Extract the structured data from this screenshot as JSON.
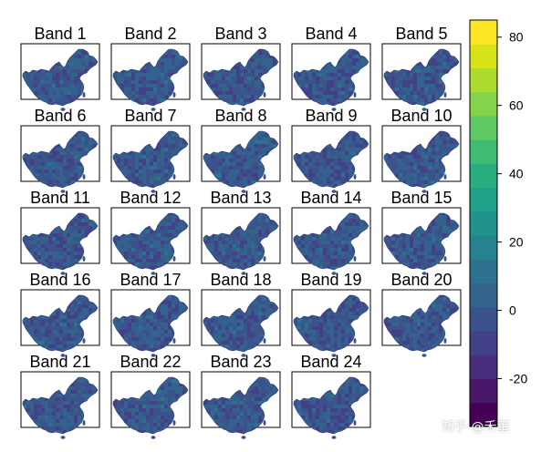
{
  "chart_data": {
    "type": "heatmap",
    "title": "",
    "panels": [
      "Band 1",
      "Band 2",
      "Band 3",
      "Band 4",
      "Band 5",
      "Band 6",
      "Band 7",
      "Band 8",
      "Band 9",
      "Band 10",
      "Band 11",
      "Band 12",
      "Band 13",
      "Band 14",
      "Band 15",
      "Band 16",
      "Band 17",
      "Band 18",
      "Band 19",
      "Band 20",
      "Band 21",
      "Band 22",
      "Band 23",
      "Band 24"
    ],
    "grid": {
      "rows": 5,
      "cols": 5
    },
    "colorbar": {
      "colormap": "viridis",
      "range": [
        -34,
        85
      ],
      "ticks": [
        80,
        60,
        40,
        20,
        0,
        -20
      ],
      "tick_labels": [
        "80",
        "60",
        "40",
        "20",
        "0",
        "-20"
      ],
      "n_levels": 17
    },
    "typical_value_range": [
      -10,
      15
    ]
  },
  "watermark": "知乎 @禾董"
}
